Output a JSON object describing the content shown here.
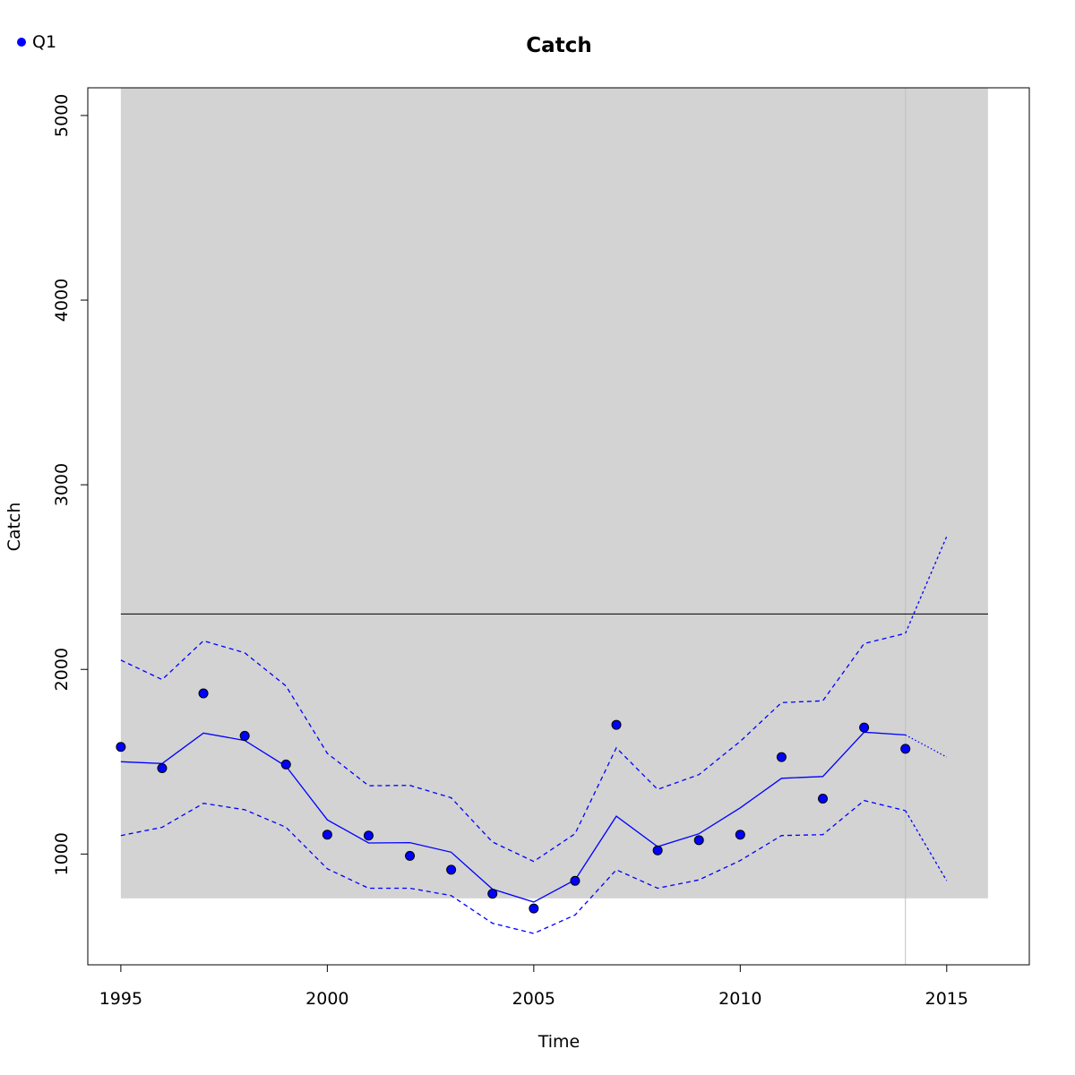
{
  "chart_data": {
    "type": "line",
    "title": "Catch",
    "xlabel": "Time",
    "ylabel": "Catch",
    "xlim": [
      1994.2,
      2017.0
    ],
    "ylim": [
      400,
      5150
    ],
    "x_ticks": [
      1995,
      2000,
      2005,
      2010,
      2015
    ],
    "y_ticks": [
      1000,
      2000,
      3000,
      4000,
      5000
    ],
    "grid": false,
    "legend": {
      "position": "top-left",
      "entries": [
        {
          "label": "Q1",
          "color": "#0000ff",
          "marker": "circle"
        }
      ]
    },
    "shaded_region": {
      "x": [
        1995,
        2016
      ],
      "y": [
        760,
        5150
      ],
      "color": "#d3d3d3"
    },
    "reference_line": {
      "y": 2300,
      "x": [
        1995,
        2016
      ],
      "color": "#000000"
    },
    "vertical_line": {
      "x": 2014,
      "color": "#c0c0c0"
    },
    "series": [
      {
        "name": "Q1",
        "kind": "observed-points",
        "color": "#0000ff",
        "x": [
          1995,
          1996,
          1997,
          1998,
          1999,
          2000,
          2001,
          2002,
          2003,
          2004,
          2005,
          2006,
          2007,
          2008,
          2009,
          2010,
          2011,
          2012,
          2013,
          2014
        ],
        "y": [
          1580,
          1465,
          1870,
          1640,
          1485,
          1105,
          1100,
          990,
          915,
          785,
          705,
          855,
          1700,
          1020,
          1075,
          1105,
          1525,
          1300,
          1685,
          1570
        ]
      },
      {
        "kind": "fitted-line",
        "color": "#0000ff",
        "x": [
          1995,
          1996,
          1997,
          1998,
          1999,
          2000,
          2001,
          2002,
          2003,
          2004,
          2005,
          2006,
          2007,
          2008,
          2009,
          2010,
          2011,
          2012,
          2013,
          2014
        ],
        "y": [
          1500,
          1490,
          1655,
          1615,
          1475,
          1185,
          1060,
          1062,
          1010,
          810,
          740,
          860,
          1205,
          1040,
          1110,
          1250,
          1410,
          1420,
          1660,
          1645
        ]
      },
      {
        "kind": "upper-band",
        "color": "#0000ff",
        "x": [
          1995,
          1996,
          1997,
          1998,
          1999,
          2000,
          2001,
          2002,
          2003,
          2004,
          2005,
          2006,
          2007,
          2008,
          2009,
          2010,
          2011,
          2012,
          2013,
          2014
        ],
        "y": [
          2050,
          1945,
          2155,
          2090,
          1910,
          1545,
          1370,
          1372,
          1305,
          1065,
          960,
          1110,
          1575,
          1350,
          1430,
          1610,
          1820,
          1830,
          2140,
          2195
        ]
      },
      {
        "kind": "lower-band",
        "color": "#0000ff",
        "x": [
          1995,
          1996,
          1997,
          1998,
          1999,
          2000,
          2001,
          2002,
          2003,
          2004,
          2005,
          2006,
          2007,
          2008,
          2009,
          2010,
          2011,
          2012,
          2013,
          2014
        ],
        "y": [
          1100,
          1145,
          1275,
          1240,
          1145,
          920,
          815,
          815,
          775,
          625,
          570,
          670,
          915,
          815,
          860,
          965,
          1100,
          1105,
          1290,
          1235
        ]
      },
      {
        "kind": "forecast-line",
        "color": "#0000ff",
        "x": [
          2014,
          2015
        ],
        "y": [
          1645,
          1525
        ]
      },
      {
        "kind": "forecast-upper",
        "color": "#0000ff",
        "x": [
          2014,
          2015
        ],
        "y": [
          2195,
          2720
        ]
      },
      {
        "kind": "forecast-lower",
        "color": "#0000ff",
        "x": [
          2014,
          2015
        ],
        "y": [
          1235,
          855
        ]
      }
    ]
  }
}
